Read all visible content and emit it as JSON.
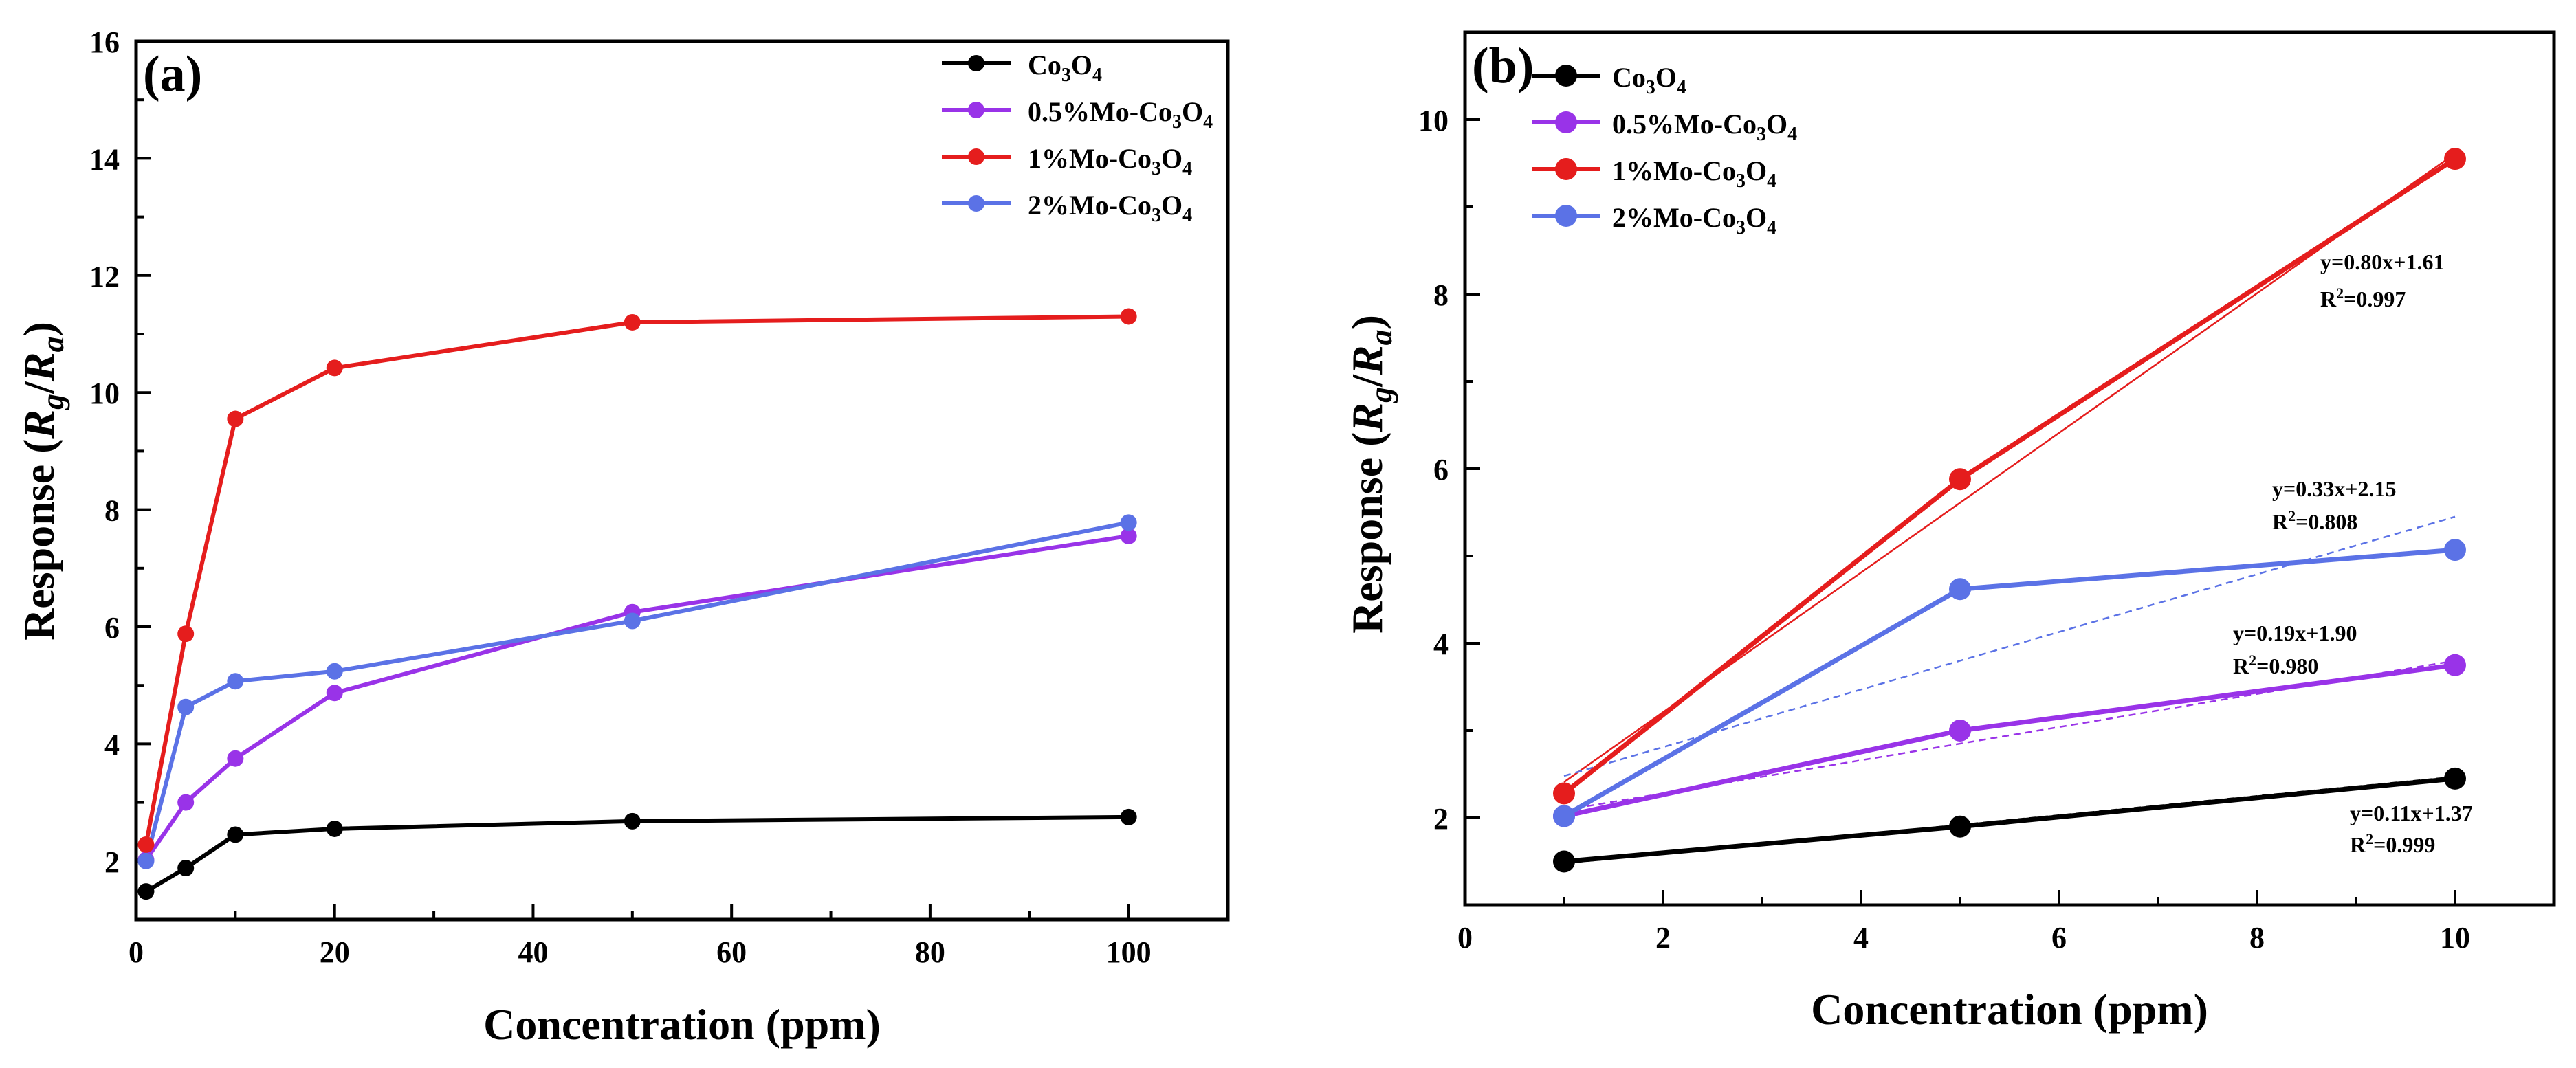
{
  "colors": {
    "co3o4": "#000000",
    "mo05": "#9933e8",
    "mo1": "#e51d1d",
    "mo2": "#5b72e6"
  },
  "chart_data": [
    {
      "panel": "(a)",
      "type": "line",
      "xlabel": "Concentration (ppm)",
      "ylabel": "Response (Rg/Ra)",
      "xlim": [
        0,
        110
      ],
      "ylim": [
        1,
        16
      ],
      "xticks": [
        "0",
        "20",
        "40",
        "60",
        "80",
        "100"
      ],
      "yticks": [
        "2",
        "4",
        "6",
        "8",
        "10",
        "12",
        "14",
        "16"
      ],
      "x": [
        1,
        5,
        10,
        20,
        50,
        100
      ],
      "legend_position": "top-right",
      "series": [
        {
          "name": "Co3O4",
          "label_base": "Co",
          "sub1": "3",
          "mid": "O",
          "sub2": "4",
          "color_key": "co3o4",
          "values": [
            1.48,
            1.88,
            2.45,
            2.55,
            2.68,
            2.75
          ]
        },
        {
          "name": "0.5%Mo-Co3O4",
          "label_base": "0.5%Mo-Co",
          "sub1": "3",
          "mid": "O",
          "sub2": "4",
          "color_key": "mo05",
          "values": [
            2.02,
            3.0,
            3.75,
            4.87,
            6.25,
            7.55
          ]
        },
        {
          "name": "1%Mo-Co3O4",
          "label_base": "1%Mo-Co",
          "sub1": "3",
          "mid": "O",
          "sub2": "4",
          "color_key": "mo1",
          "values": [
            2.28,
            5.88,
            9.55,
            10.42,
            11.2,
            11.3
          ]
        },
        {
          "name": "2%Mo-Co3O4",
          "label_base": "2%Mo-Co",
          "sub1": "3",
          "mid": "O",
          "sub2": "4",
          "color_key": "mo2",
          "values": [
            2.0,
            4.63,
            5.07,
            5.24,
            6.1,
            7.78
          ]
        }
      ]
    },
    {
      "panel": "(b)",
      "type": "line",
      "xlabel": "Concentration (ppm)",
      "ylabel": "Response (Rg/Ra)",
      "xlim": [
        0,
        11
      ],
      "ylim": [
        1,
        11
      ],
      "xticks": [
        "0",
        "2",
        "4",
        "6",
        "8",
        "10"
      ],
      "yticks": [
        "2",
        "4",
        "6",
        "8",
        "10"
      ],
      "x": [
        1,
        5,
        10
      ],
      "legend_position": "top-left",
      "series": [
        {
          "name": "Co3O4",
          "label_base": "Co",
          "sub1": "3",
          "mid": "O",
          "sub2": "4",
          "color_key": "co3o4",
          "values": [
            1.5,
            1.9,
            2.45
          ],
          "fit": {
            "slope": 0.11,
            "intercept": 1.37,
            "equation": "y=0.11x+1.37",
            "r2_prefix": "R",
            "r2_sup": "2",
            "r2_value": "=0.999"
          }
        },
        {
          "name": "0.5%Mo-Co3O4",
          "label_base": "0.5%Mo-Co",
          "sub1": "3",
          "mid": "O",
          "sub2": "4",
          "color_key": "mo05",
          "values": [
            2.02,
            3.0,
            3.75
          ],
          "fit": {
            "slope": 0.19,
            "intercept": 1.9,
            "equation": "y=0.19x+1.90",
            "r2_prefix": "R",
            "r2_sup": "2",
            "r2_value": "=0.980"
          }
        },
        {
          "name": "1%Mo-Co3O4",
          "label_base": "1%Mo-Co",
          "sub1": "3",
          "mid": "O",
          "sub2": "4",
          "color_key": "mo1",
          "values": [
            2.28,
            5.88,
            9.55
          ],
          "fit": {
            "slope": 0.8,
            "intercept": 1.61,
            "equation": "y=0.80x+1.61",
            "r2_prefix": "R",
            "r2_sup": "2",
            "r2_value": "=0.997"
          }
        },
        {
          "name": "2%Mo-Co3O4",
          "label_base": "2%Mo-Co",
          "sub1": "3",
          "mid": "O",
          "sub2": "4",
          "color_key": "mo2",
          "values": [
            2.02,
            4.62,
            5.07
          ],
          "fit": {
            "slope": 0.33,
            "intercept": 2.15,
            "equation": "y=0.33x+2.15",
            "r2_prefix": "R",
            "r2_sup": "2",
            "r2_value": "=0.808"
          }
        }
      ]
    }
  ]
}
